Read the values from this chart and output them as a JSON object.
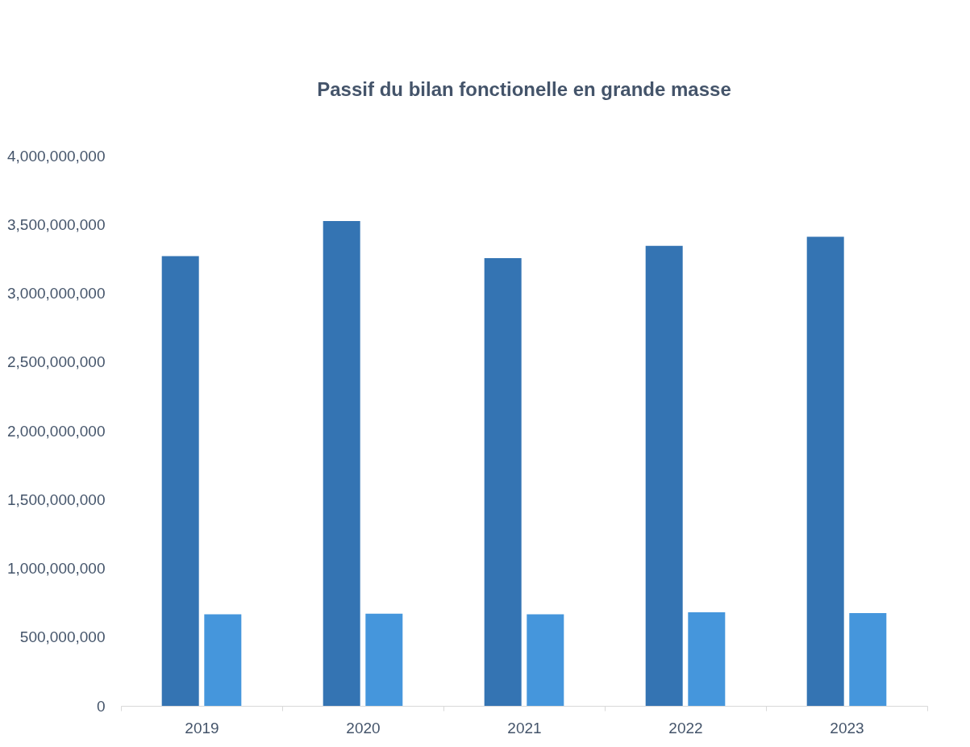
{
  "chart_data": {
    "type": "bar",
    "title": "Passif du bilan fonctionelle en grande masse",
    "categories": [
      "2019",
      "2020",
      "2021",
      "2022",
      "2023"
    ],
    "series": [
      {
        "color": "#3474b3",
        "values": [
          3270000000,
          3525000000,
          3255000000,
          3345000000,
          3410000000
        ]
      },
      {
        "color": "#4596dc",
        "values": [
          665000000,
          670000000,
          665000000,
          680000000,
          675000000
        ]
      }
    ],
    "ylim": [
      0,
      4000000000
    ],
    "yticks": [
      0,
      {
        "value": 500000000,
        "label": "500,000,000"
      },
      {
        "value": 1000000000,
        "label": "1,000,000,000"
      },
      {
        "value": 1500000000,
        "label": "1,500,000,000"
      },
      {
        "value": 2000000000,
        "label": "2,000,000,000"
      },
      {
        "value": 2500000000,
        "label": "2,500,000,000"
      },
      {
        "value": 3000000000,
        "label": "3,000,000,000"
      },
      {
        "value": 3500000000,
        "label": "3,500,000,000"
      },
      {
        "value": 4000000000,
        "label": "4,000,000,000"
      }
    ],
    "grid": false,
    "legend": false
  }
}
